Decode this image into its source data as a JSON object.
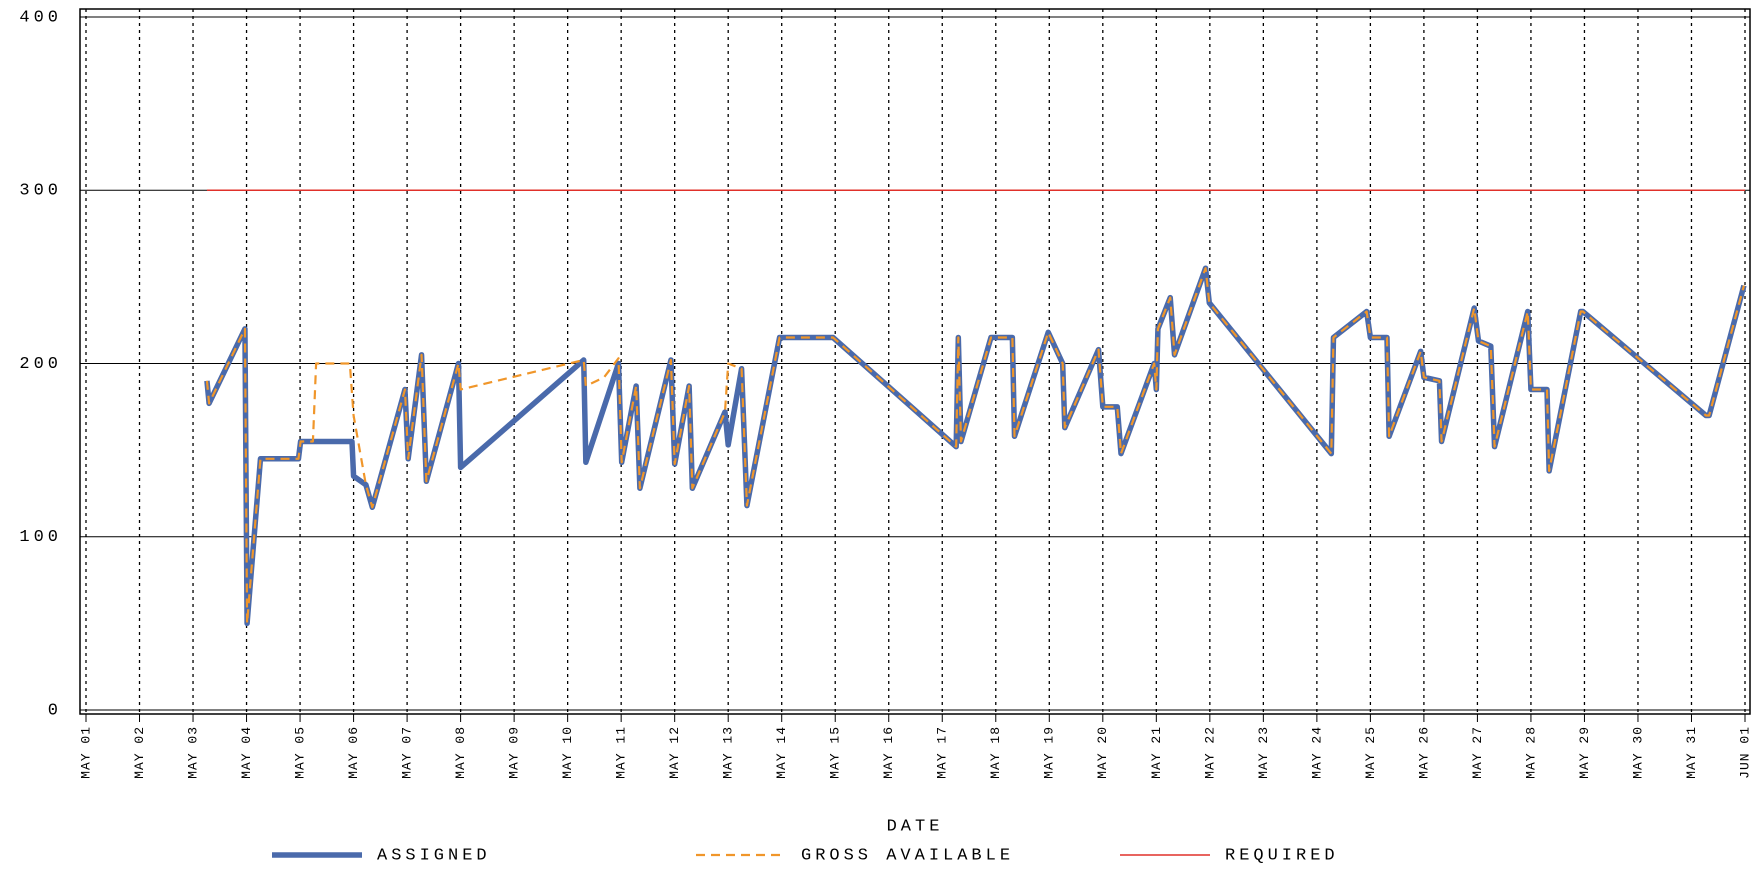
{
  "chart_data": {
    "type": "line",
    "x_label": "DATE",
    "xlim": [
      0,
      31
    ],
    "xticks": [
      {
        "value": 0,
        "label": "MAY 01"
      },
      {
        "value": 1,
        "label": "MAY 02"
      },
      {
        "value": 2,
        "label": "MAY 03"
      },
      {
        "value": 3,
        "label": "MAY 04"
      },
      {
        "value": 4,
        "label": "MAY 05"
      },
      {
        "value": 5,
        "label": "MAY 06"
      },
      {
        "value": 6,
        "label": "MAY 07"
      },
      {
        "value": 7,
        "label": "MAY 08"
      },
      {
        "value": 8,
        "label": "MAY 09"
      },
      {
        "value": 9,
        "label": "MAY 10"
      },
      {
        "value": 10,
        "label": "MAY 11"
      },
      {
        "value": 11,
        "label": "MAY 12"
      },
      {
        "value": 12,
        "label": "MAY 13"
      },
      {
        "value": 13,
        "label": "MAY 14"
      },
      {
        "value": 14,
        "label": "MAY 15"
      },
      {
        "value": 15,
        "label": "MAY 16"
      },
      {
        "value": 16,
        "label": "MAY 17"
      },
      {
        "value": 17,
        "label": "MAY 18"
      },
      {
        "value": 18,
        "label": "MAY 19"
      },
      {
        "value": 19,
        "label": "MAY 20"
      },
      {
        "value": 20,
        "label": "MAY 21"
      },
      {
        "value": 21,
        "label": "MAY 22"
      },
      {
        "value": 22,
        "label": "MAY 23"
      },
      {
        "value": 23,
        "label": "MAY 24"
      },
      {
        "value": 24,
        "label": "MAY 25"
      },
      {
        "value": 25,
        "label": "MAY 26"
      },
      {
        "value": 26,
        "label": "MAY 27"
      },
      {
        "value": 27,
        "label": "MAY 28"
      },
      {
        "value": 28,
        "label": "MAY 29"
      },
      {
        "value": 29,
        "label": "MAY 30"
      },
      {
        "value": 30,
        "label": "MAY 31"
      },
      {
        "value": 31,
        "label": "JUN 01"
      }
    ],
    "ylim": [
      0,
      400
    ],
    "yticks": [
      0,
      100,
      200,
      300,
      400
    ],
    "grid": true,
    "series": [
      {
        "name": "ASSIGNED",
        "color": "#4a6aab",
        "style": "solid",
        "x": [
          2.26,
          2.3,
          2.97,
          3.01,
          3.26,
          3.97,
          4.01,
          4.97,
          5.0,
          5.23,
          5.35,
          5.96,
          6.02,
          6.27,
          6.36,
          6.96,
          7.0,
          9.3,
          9.34,
          9.95,
          10.01,
          10.28,
          10.35,
          10.93,
          11.0,
          11.27,
          11.33,
          11.94,
          12.0,
          12.25,
          12.35,
          12.96,
          13.96,
          16.26,
          16.3,
          16.35,
          16.91,
          17.31,
          17.35,
          17.98,
          18.25,
          18.29,
          18.92,
          19.0,
          19.27,
          19.34,
          19.96,
          20.0,
          20.03,
          20.26,
          20.34,
          20.92,
          20.99,
          23.27,
          23.31,
          23.93,
          24.0,
          24.31,
          24.35,
          24.94,
          25.0,
          25.29,
          25.33,
          25.94,
          26.02,
          26.25,
          26.32,
          26.94,
          27.0,
          27.3,
          27.34,
          27.93,
          27.97,
          30.27,
          30.33,
          30.98
        ],
        "values": [
          190,
          177,
          220,
          50,
          145,
          145,
          155,
          155,
          135,
          130,
          117,
          185,
          145,
          205,
          132,
          200,
          140,
          202,
          143,
          200,
          143,
          187,
          128,
          202,
          142,
          187,
          128,
          172,
          153,
          197,
          118,
          215,
          215,
          152,
          215,
          155,
          215,
          215,
          158,
          218,
          200,
          163,
          208,
          175,
          175,
          148,
          200,
          185,
          220,
          238,
          205,
          255,
          235,
          148,
          215,
          230,
          215,
          215,
          158,
          207,
          192,
          190,
          155,
          232,
          213,
          210,
          152,
          230,
          185,
          185,
          138,
          230,
          230,
          170,
          170,
          245
        ]
      },
      {
        "name": "GROSS AVAILABLE",
        "color": "#f0962a",
        "style": "dashed",
        "x": [
          2.26,
          2.3,
          2.97,
          3.01,
          3.26,
          3.97,
          4.01,
          4.24,
          4.3,
          4.93,
          5.0,
          5.23,
          5.35,
          5.96,
          6.02,
          6.27,
          6.36,
          6.96,
          7.0,
          9.3,
          9.34,
          9.68,
          9.95,
          10.01,
          10.28,
          10.35,
          10.93,
          11.0,
          11.27,
          11.33,
          11.94,
          12.0,
          12.25,
          12.35,
          12.96,
          13.96,
          16.26,
          16.3,
          16.35,
          16.91,
          17.31,
          17.35,
          17.98,
          18.25,
          18.29,
          18.92,
          19.0,
          19.27,
          19.34,
          19.96,
          20.0,
          20.03,
          20.26,
          20.34,
          20.92,
          20.99,
          23.27,
          23.31,
          23.93,
          24.0,
          24.31,
          24.35,
          24.94,
          25.0,
          25.29,
          25.33,
          25.94,
          26.02,
          26.25,
          26.32,
          26.94,
          27.0,
          27.3,
          27.34,
          27.93,
          27.97,
          30.27,
          30.33,
          30.98
        ],
        "values": [
          190,
          177,
          220,
          50,
          145,
          145,
          155,
          155,
          200,
          200,
          170,
          130,
          117,
          185,
          145,
          205,
          132,
          200,
          185,
          202,
          187,
          192,
          203,
          143,
          187,
          128,
          202,
          142,
          187,
          128,
          172,
          200,
          197,
          118,
          215,
          215,
          152,
          215,
          155,
          215,
          215,
          158,
          218,
          200,
          163,
          208,
          175,
          175,
          148,
          200,
          185,
          220,
          238,
          205,
          255,
          235,
          148,
          215,
          230,
          215,
          215,
          158,
          207,
          192,
          190,
          155,
          232,
          213,
          210,
          152,
          230,
          185,
          185,
          138,
          230,
          230,
          170,
          170,
          245
        ]
      },
      {
        "name": "REQUIRED",
        "color": "#e0302a",
        "style": "thin",
        "x": [
          2.26,
          31
        ],
        "values": [
          300,
          300
        ]
      }
    ]
  }
}
